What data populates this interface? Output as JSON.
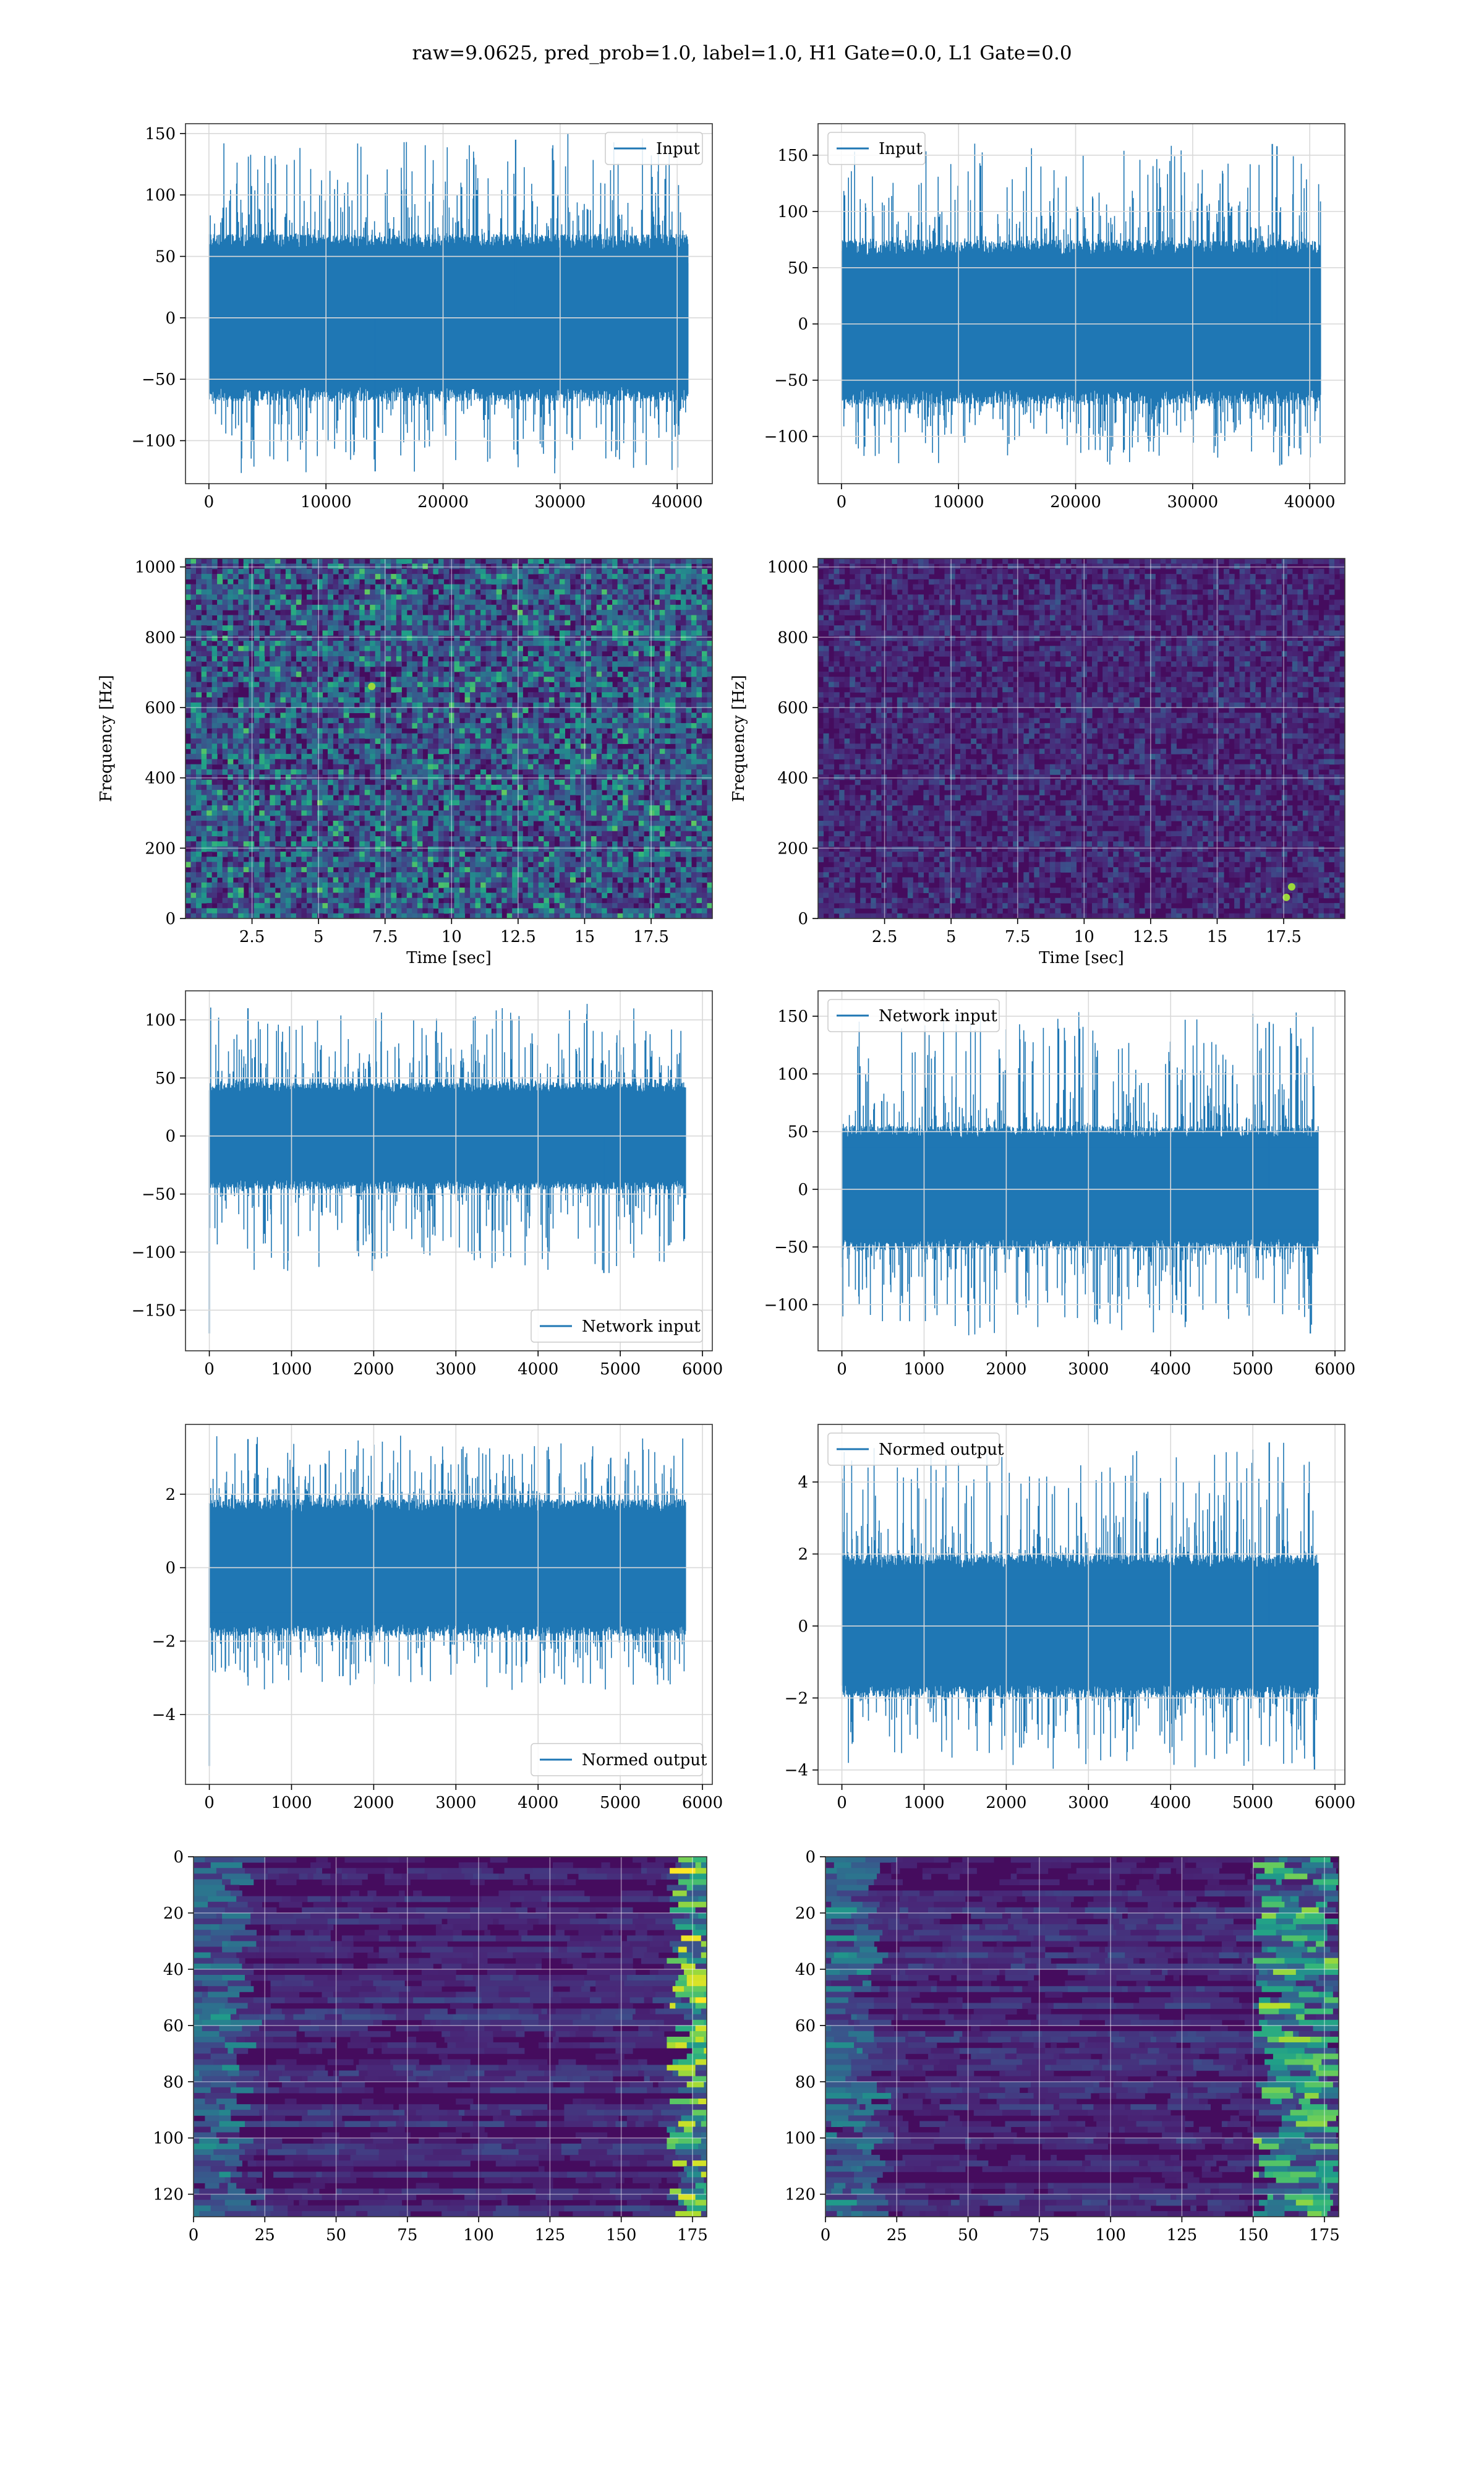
{
  "figure": {
    "suptitle": "raw=9.0625, pred_prob=1.0, label=1.0, H1 Gate=0.0, L1 Gate=0.0"
  },
  "colors": {
    "line": "#1f77b4",
    "grid": "#d9d9d9"
  },
  "chart_data": [
    {
      "id": "r1c1",
      "type": "line",
      "legend": "Input",
      "legend_pos": "upper right",
      "xlim": [
        -2000,
        43000
      ],
      "ylim": [
        -135,
        158
      ],
      "xticks": [
        0,
        10000,
        20000,
        30000,
        40000
      ],
      "yticks": [
        -100,
        -50,
        0,
        50,
        100,
        150
      ],
      "xlabel": "",
      "ylabel": "",
      "n": 40960,
      "envelope": [
        -62,
        62
      ],
      "spike": [
        -125,
        145
      ],
      "peaks": [
        {
          "x": 26200,
          "y": 145
        },
        {
          "x": 14200,
          "y": -125
        }
      ]
    },
    {
      "id": "r1c2",
      "type": "line",
      "legend": "Input",
      "legend_pos": "upper left",
      "xlim": [
        -2000,
        43000
      ],
      "ylim": [
        -142,
        178
      ],
      "xticks": [
        0,
        10000,
        20000,
        30000,
        40000
      ],
      "yticks": [
        -100,
        -50,
        0,
        50,
        100,
        150
      ],
      "xlabel": "",
      "ylabel": "",
      "n": 40960,
      "envelope": [
        -65,
        68
      ],
      "spike": [
        -125,
        160
      ],
      "peaks": [
        {
          "x": 36800,
          "y": 160
        },
        {
          "x": 37200,
          "y": 158
        },
        {
          "x": 37600,
          "y": -125
        }
      ]
    },
    {
      "id": "r2c1",
      "type": "heatmap",
      "xlim": [
        0,
        19.8
      ],
      "ylim": [
        0,
        1024
      ],
      "xticks": [
        2.5,
        5.0,
        7.5,
        10.0,
        12.5,
        15.0,
        17.5
      ],
      "yticks": [
        0,
        200,
        400,
        600,
        800,
        1000
      ],
      "xlabel": "Time [sec]",
      "ylabel": "Frequency [Hz]",
      "brightness": 0.55,
      "cols": 100,
      "rows": 70,
      "hotspots": [
        {
          "x": 7.0,
          "y": 660
        }
      ]
    },
    {
      "id": "r2c2",
      "type": "heatmap",
      "xlim": [
        0,
        19.8
      ],
      "ylim": [
        0,
        1024
      ],
      "xticks": [
        2.5,
        5.0,
        7.5,
        10.0,
        12.5,
        15.0,
        17.5
      ],
      "yticks": [
        0,
        200,
        400,
        600,
        800,
        1000
      ],
      "xlabel": "Time [sec]",
      "ylabel": "Frequency [Hz]",
      "brightness": 0.22,
      "cols": 100,
      "rows": 70,
      "hotspots": [
        {
          "x": 17.6,
          "y": 60
        },
        {
          "x": 17.8,
          "y": 90
        }
      ]
    },
    {
      "id": "r3c1",
      "type": "line",
      "legend": "Network input",
      "legend_pos": "lower right",
      "xlim": [
        -290,
        6120
      ],
      "ylim": [
        -185,
        125
      ],
      "xticks": [
        0,
        1000,
        2000,
        3000,
        4000,
        5000,
        6000
      ],
      "yticks": [
        -150,
        -100,
        -50,
        0,
        50,
        100
      ],
      "xlabel": "",
      "ylabel": "",
      "n": 5800,
      "envelope": [
        -42,
        42
      ],
      "spike": [
        -118,
        110
      ],
      "peaks": [
        {
          "x": 0,
          "y": -170
        },
        {
          "x": 470,
          "y": 110
        },
        {
          "x": 4800,
          "y": -118
        }
      ]
    },
    {
      "id": "r3c2",
      "type": "line",
      "legend": "Network input",
      "legend_pos": "upper left",
      "xlim": [
        -290,
        6120
      ],
      "ylim": [
        -140,
        172
      ],
      "xticks": [
        0,
        1000,
        2000,
        3000,
        4000,
        5000,
        6000
      ],
      "yticks": [
        -100,
        -50,
        0,
        50,
        100,
        150
      ],
      "xlabel": "",
      "ylabel": "",
      "n": 5800,
      "envelope": [
        -48,
        50
      ],
      "spike": [
        -125,
        152
      ],
      "peaks": [
        {
          "x": 5000,
          "y": 152
        },
        {
          "x": 5200,
          "y": 145
        },
        {
          "x": 5700,
          "y": -125
        }
      ]
    },
    {
      "id": "r4c1",
      "type": "line",
      "legend": "Normed output",
      "legend_pos": "lower right",
      "xlim": [
        -290,
        6120
      ],
      "ylim": [
        -5.9,
        3.9
      ],
      "xticks": [
        0,
        1000,
        2000,
        3000,
        4000,
        5000,
        6000
      ],
      "yticks": [
        -4,
        -2,
        0,
        2
      ],
      "xlabel": "",
      "ylabel": "",
      "n": 5800,
      "envelope": [
        -1.7,
        1.7
      ],
      "spike": [
        -3.3,
        3.5
      ],
      "peaks": [
        {
          "x": 0,
          "y": -5.4
        },
        {
          "x": 470,
          "y": 3.5
        }
      ]
    },
    {
      "id": "r4c2",
      "type": "line",
      "legend": "Normed output",
      "legend_pos": "upper left",
      "xlim": [
        -290,
        6120
      ],
      "ylim": [
        -4.4,
        5.6
      ],
      "xticks": [
        0,
        1000,
        2000,
        3000,
        4000,
        5000,
        6000
      ],
      "yticks": [
        -4,
        -2,
        0,
        2,
        4
      ],
      "xlabel": "",
      "ylabel": "",
      "n": 5800,
      "envelope": [
        -1.8,
        1.8
      ],
      "spike": [
        -4.0,
        5.1
      ],
      "peaks": [
        {
          "x": 5000,
          "y": 4.9
        },
        {
          "x": 5200,
          "y": 5.1
        },
        {
          "x": 5750,
          "y": -4.0
        }
      ]
    },
    {
      "id": "r5c1",
      "type": "heatmap",
      "xlim": [
        0,
        180
      ],
      "ylim": [
        128,
        0
      ],
      "xticks": [
        0,
        25,
        50,
        75,
        100,
        125,
        150,
        175
      ],
      "yticks": [
        0,
        20,
        40,
        60,
        80,
        100,
        120
      ],
      "xlabel": "",
      "ylabel": "",
      "brightness": 0.3,
      "cols": 180,
      "rows": 128,
      "streaks": true,
      "bright_right": true
    },
    {
      "id": "r5c2",
      "type": "heatmap",
      "xlim": [
        0,
        180
      ],
      "ylim": [
        128,
        0
      ],
      "xticks": [
        0,
        25,
        50,
        75,
        100,
        125,
        150,
        175
      ],
      "yticks": [
        0,
        20,
        40,
        60,
        80,
        100,
        120
      ],
      "xlabel": "",
      "ylabel": "",
      "brightness": 0.3,
      "cols": 180,
      "rows": 128,
      "streaks": true,
      "bright_band": [
        150,
        175
      ]
    }
  ]
}
